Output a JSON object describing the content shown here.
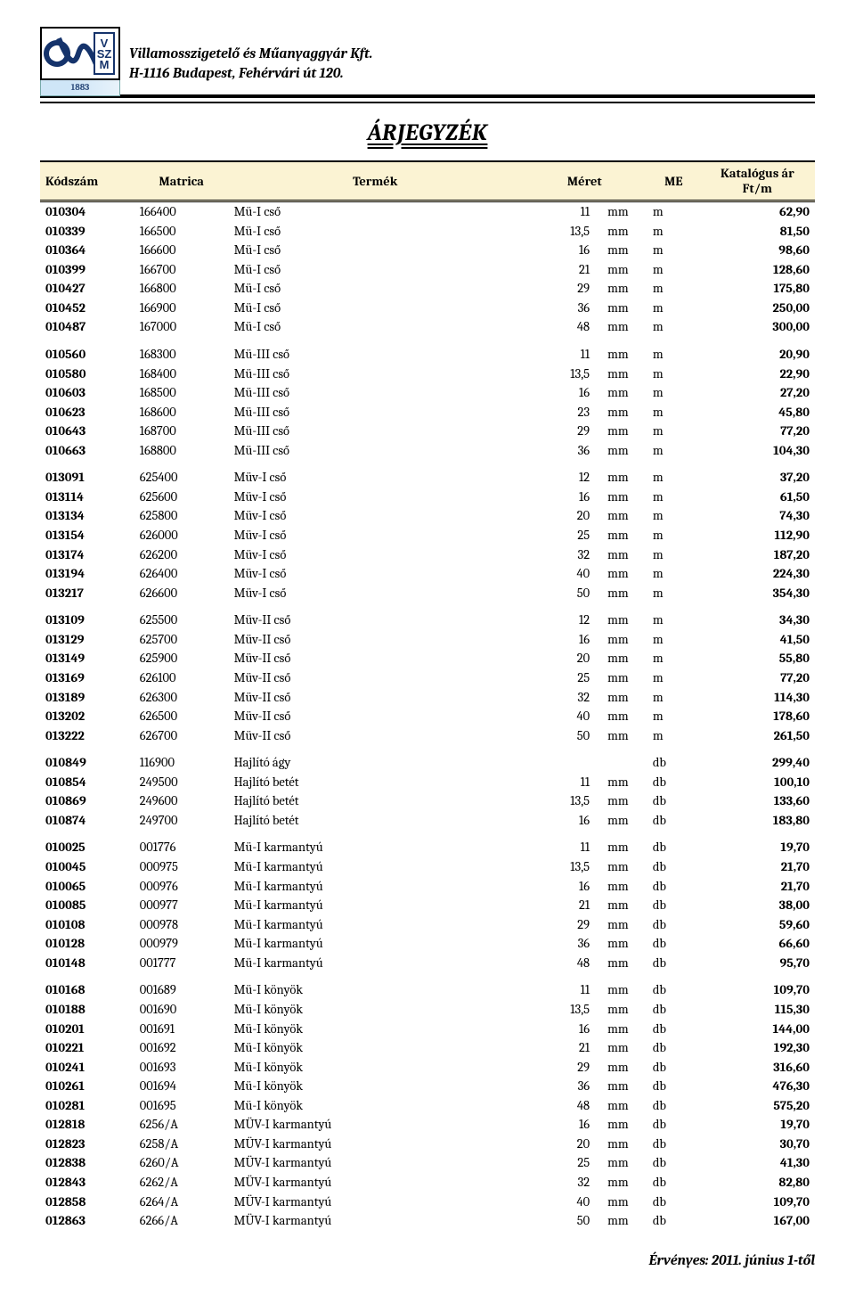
{
  "company": {
    "name": "Villamosszigetelő és Műanyaggyár Kft.",
    "address": "H-1116 Budapest, Fehérvári út 120.",
    "logo_year": "1883"
  },
  "title": "ÁRJEGYZÉK",
  "columns": {
    "kodszam": "Kódszám",
    "matrica": "Matrica",
    "termek": "Termék",
    "meret": "Méret",
    "me": "ME",
    "ar_line1": "Katalógus ár",
    "ar_line2": "Ft/m"
  },
  "style": {
    "header_bg": "#fbf3d3",
    "page_bg": "#ffffff",
    "text_color": "#000000",
    "rule_color": "#000000",
    "font_family": "Cambria",
    "title_fontsize": 26,
    "body_fontsize": 14.5
  },
  "groups": [
    {
      "rows": [
        {
          "kodszam": "010304",
          "matrica": "166400",
          "termek": "Mü-I  cső",
          "meret": "11",
          "mm": "mm",
          "me": "m",
          "ar": "62,90"
        },
        {
          "kodszam": "010339",
          "matrica": "166500",
          "termek": "Mü-I  cső",
          "meret": "13,5",
          "mm": "mm",
          "me": "m",
          "ar": "81,50"
        },
        {
          "kodszam": "010364",
          "matrica": "166600",
          "termek": "Mü-I  cső",
          "meret": "16",
          "mm": "mm",
          "me": "m",
          "ar": "98,60"
        },
        {
          "kodszam": "010399",
          "matrica": "166700",
          "termek": "Mü-I  cső",
          "meret": "21",
          "mm": "mm",
          "me": "m",
          "ar": "128,60"
        },
        {
          "kodszam": "010427",
          "matrica": "166800",
          "termek": "Mü-I  cső",
          "meret": "29",
          "mm": "mm",
          "me": "m",
          "ar": "175,80"
        },
        {
          "kodszam": "010452",
          "matrica": "166900",
          "termek": "Mü-I  cső",
          "meret": "36",
          "mm": "mm",
          "me": "m",
          "ar": "250,00"
        },
        {
          "kodszam": "010487",
          "matrica": "167000",
          "termek": "Mü-I  cső",
          "meret": "48",
          "mm": "mm",
          "me": "m",
          "ar": "300,00"
        }
      ]
    },
    {
      "rows": [
        {
          "kodszam": "010560",
          "matrica": "168300",
          "termek": "Mü-III cső",
          "meret": "11",
          "mm": "mm",
          "me": "m",
          "ar": "20,90"
        },
        {
          "kodszam": "010580",
          "matrica": "168400",
          "termek": "Mü-III cső",
          "meret": "13,5",
          "mm": "mm",
          "me": "m",
          "ar": "22,90"
        },
        {
          "kodszam": "010603",
          "matrica": "168500",
          "termek": "Mü-III cső",
          "meret": "16",
          "mm": "mm",
          "me": "m",
          "ar": "27,20"
        },
        {
          "kodszam": "010623",
          "matrica": "168600",
          "termek": "Mü-III cső",
          "meret": "23",
          "mm": "mm",
          "me": "m",
          "ar": "45,80"
        },
        {
          "kodszam": "010643",
          "matrica": "168700",
          "termek": "Mü-III cső",
          "meret": "29",
          "mm": "mm",
          "me": "m",
          "ar": "77,20"
        },
        {
          "kodszam": "010663",
          "matrica": "168800",
          "termek": "Mü-III cső",
          "meret": "36",
          "mm": "mm",
          "me": "m",
          "ar": "104,30"
        }
      ]
    },
    {
      "rows": [
        {
          "kodszam": "013091",
          "matrica": "625400",
          "termek": "Müv-I cső",
          "meret": "12",
          "mm": "mm",
          "me": "m",
          "ar": "37,20"
        },
        {
          "kodszam": "013114",
          "matrica": "625600",
          "termek": "Müv-I cső",
          "meret": "16",
          "mm": "mm",
          "me": "m",
          "ar": "61,50"
        },
        {
          "kodszam": "013134",
          "matrica": "625800",
          "termek": "Müv-I cső",
          "meret": "20",
          "mm": "mm",
          "me": "m",
          "ar": "74,30"
        },
        {
          "kodszam": "013154",
          "matrica": "626000",
          "termek": "Müv-I cső",
          "meret": "25",
          "mm": "mm",
          "me": "m",
          "ar": "112,90"
        },
        {
          "kodszam": "013174",
          "matrica": "626200",
          "termek": "Müv-I cső",
          "meret": "32",
          "mm": "mm",
          "me": "m",
          "ar": "187,20"
        },
        {
          "kodszam": "013194",
          "matrica": "626400",
          "termek": "Müv-I cső",
          "meret": "40",
          "mm": "mm",
          "me": "m",
          "ar": "224,30"
        },
        {
          "kodszam": "013217",
          "matrica": "626600",
          "termek": "Müv-I cső",
          "meret": "50",
          "mm": "mm",
          "me": "m",
          "ar": "354,30"
        }
      ]
    },
    {
      "rows": [
        {
          "kodszam": "013109",
          "matrica": "625500",
          "termek": "Müv-II cső",
          "meret": "12",
          "mm": "mm",
          "me": "m",
          "ar": "34,30"
        },
        {
          "kodszam": "013129",
          "matrica": "625700",
          "termek": "Müv-II cső",
          "meret": "16",
          "mm": "mm",
          "me": "m",
          "ar": "41,50"
        },
        {
          "kodszam": "013149",
          "matrica": "625900",
          "termek": "Müv-II cső",
          "meret": "20",
          "mm": "mm",
          "me": "m",
          "ar": "55,80"
        },
        {
          "kodszam": "013169",
          "matrica": "626100",
          "termek": "Müv-II cső",
          "meret": "25",
          "mm": "mm",
          "me": "m",
          "ar": "77,20"
        },
        {
          "kodszam": "013189",
          "matrica": "626300",
          "termek": "Müv-II cső",
          "meret": "32",
          "mm": "mm",
          "me": "m",
          "ar": "114,30"
        },
        {
          "kodszam": "013202",
          "matrica": "626500",
          "termek": "Müv-II cső",
          "meret": "40",
          "mm": "mm",
          "me": "m",
          "ar": "178,60"
        },
        {
          "kodszam": "013222",
          "matrica": "626700",
          "termek": "Müv-II cső",
          "meret": "50",
          "mm": "mm",
          "me": "m",
          "ar": "261,50"
        }
      ]
    },
    {
      "rows": [
        {
          "kodszam": "010849",
          "matrica": "116900",
          "termek": "Hajlító ágy",
          "meret": "",
          "mm": "",
          "me": "db",
          "ar": "299,40"
        },
        {
          "kodszam": "010854",
          "matrica": "249500",
          "termek": "Hajlító betét",
          "meret": "11",
          "mm": "mm",
          "me": "db",
          "ar": "100,10"
        },
        {
          "kodszam": "010869",
          "matrica": "249600",
          "termek": "Hajlító betét",
          "meret": "13,5",
          "mm": "mm",
          "me": "db",
          "ar": "133,60"
        },
        {
          "kodszam": "010874",
          "matrica": "249700",
          "termek": "Hajlító betét",
          "meret": "16",
          "mm": "mm",
          "me": "db",
          "ar": "183,80"
        }
      ]
    },
    {
      "rows": [
        {
          "kodszam": "010025",
          "matrica": "001776",
          "termek": "Mü-I  karmantyú",
          "meret": "11",
          "mm": "mm",
          "me": "db",
          "ar": "19,70"
        },
        {
          "kodszam": "010045",
          "matrica": "000975",
          "termek": "Mü-I  karmantyú",
          "meret": "13,5",
          "mm": "mm",
          "me": "db",
          "ar": "21,70"
        },
        {
          "kodszam": "010065",
          "matrica": "000976",
          "termek": "Mü-I  karmantyú",
          "meret": "16",
          "mm": "mm",
          "me": "db",
          "ar": "21,70"
        },
        {
          "kodszam": "010085",
          "matrica": "000977",
          "termek": "Mü-I  karmantyú",
          "meret": "21",
          "mm": "mm",
          "me": "db",
          "ar": "38,00"
        },
        {
          "kodszam": "010108",
          "matrica": "000978",
          "termek": "Mü-I  karmantyú",
          "meret": "29",
          "mm": "mm",
          "me": "db",
          "ar": "59,60"
        },
        {
          "kodszam": "010128",
          "matrica": "000979",
          "termek": "Mü-I  karmantyú",
          "meret": "36",
          "mm": "mm",
          "me": "db",
          "ar": "66,60"
        },
        {
          "kodszam": "010148",
          "matrica": "001777",
          "termek": "Mü-I  karmantyú",
          "meret": "48",
          "mm": "mm",
          "me": "db",
          "ar": "95,70"
        }
      ]
    },
    {
      "rows": [
        {
          "kodszam": "010168",
          "matrica": "001689",
          "termek": "Mü-I  könyök",
          "meret": "11",
          "mm": "mm",
          "me": "db",
          "ar": "109,70"
        },
        {
          "kodszam": "010188",
          "matrica": "001690",
          "termek": "Mü-I  könyök",
          "meret": "13,5",
          "mm": "mm",
          "me": "db",
          "ar": "115,30"
        },
        {
          "kodszam": "010201",
          "matrica": "001691",
          "termek": "Mü-I  könyök",
          "meret": "16",
          "mm": "mm",
          "me": "db",
          "ar": "144,00"
        },
        {
          "kodszam": "010221",
          "matrica": "001692",
          "termek": "Mü-I  könyök",
          "meret": "21",
          "mm": "mm",
          "me": "db",
          "ar": "192,30"
        },
        {
          "kodszam": "010241",
          "matrica": "001693",
          "termek": "Mü-I  könyök",
          "meret": "29",
          "mm": "mm",
          "me": "db",
          "ar": "316,60"
        },
        {
          "kodszam": "010261",
          "matrica": "001694",
          "termek": "Mü-I  könyök",
          "meret": "36",
          "mm": "mm",
          "me": "db",
          "ar": "476,30"
        },
        {
          "kodszam": "010281",
          "matrica": "001695",
          "termek": "Mü-I  könyök",
          "meret": "48",
          "mm": "mm",
          "me": "db",
          "ar": "575,20"
        },
        {
          "kodszam": "012818",
          "matrica": "6256/A",
          "termek": "MÜV-I karmantyú",
          "meret": "16",
          "mm": "mm",
          "me": "db",
          "ar": "19,70"
        },
        {
          "kodszam": "012823",
          "matrica": "6258/A",
          "termek": "MÜV-I karmantyú",
          "meret": "20",
          "mm": "mm",
          "me": "db",
          "ar": "30,70"
        },
        {
          "kodszam": "012838",
          "matrica": "6260/A",
          "termek": "MÜV-I karmantyú",
          "meret": "25",
          "mm": "mm",
          "me": "db",
          "ar": "41,30"
        },
        {
          "kodszam": "012843",
          "matrica": "6262/A",
          "termek": "MÜV-I karmantyú",
          "meret": "32",
          "mm": "mm",
          "me": "db",
          "ar": "82,80"
        },
        {
          "kodszam": "012858",
          "matrica": "6264/A",
          "termek": "MÜV-I karmantyú",
          "meret": "40",
          "mm": "mm",
          "me": "db",
          "ar": "109,70"
        },
        {
          "kodszam": "012863",
          "matrica": "6266/A",
          "termek": "MÜV-I karmantyú",
          "meret": "50",
          "mm": "mm",
          "me": "db",
          "ar": "167,00"
        }
      ]
    }
  ],
  "footer": "Érvényes: 2011. június 1-től"
}
